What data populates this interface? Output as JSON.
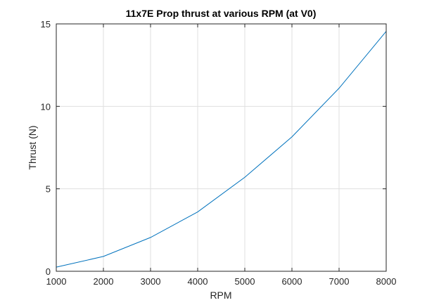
{
  "chart_data": {
    "type": "line",
    "title": "11x7E Prop thrust at various RPM (at V0)",
    "xlabel": "RPM",
    "ylabel": "Thrust (N)",
    "xlim": [
      1000,
      8000
    ],
    "ylim": [
      0,
      15
    ],
    "xticks": [
      1000,
      2000,
      3000,
      4000,
      5000,
      6000,
      7000,
      8000
    ],
    "yticks": [
      0,
      5,
      10,
      15
    ],
    "grid": true,
    "line_color": "#0072BD",
    "series": [
      {
        "x": [
          1000,
          2000,
          3000,
          4000,
          5000,
          6000,
          7000,
          8000
        ],
        "y": [
          0.25,
          0.9,
          2.05,
          3.6,
          5.7,
          8.15,
          11.1,
          14.55
        ]
      }
    ]
  }
}
